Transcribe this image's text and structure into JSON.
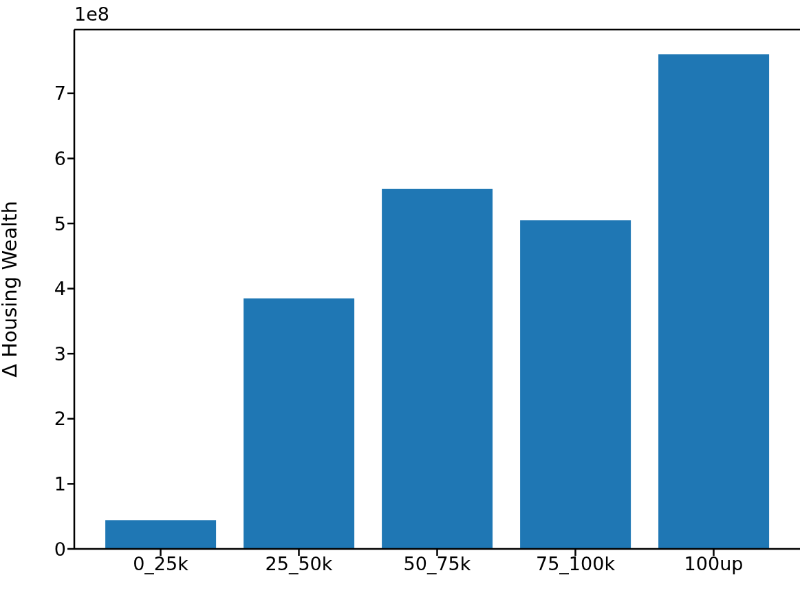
{
  "chart_data": {
    "type": "bar",
    "ylabel": "Δ Housing Wealth",
    "annotations": [
      "1e8"
    ],
    "categories": [
      "0_25k",
      "25_50k",
      "50_75k",
      "75_100k",
      "100up"
    ],
    "values": [
      0.44,
      3.85,
      5.53,
      5.05,
      7.6
    ],
    "color": "#1f77b4",
    "ylim": [
      0,
      7.98
    ],
    "yticks": [
      0,
      1,
      2,
      3,
      4,
      5,
      6,
      7
    ],
    "grid": false
  }
}
